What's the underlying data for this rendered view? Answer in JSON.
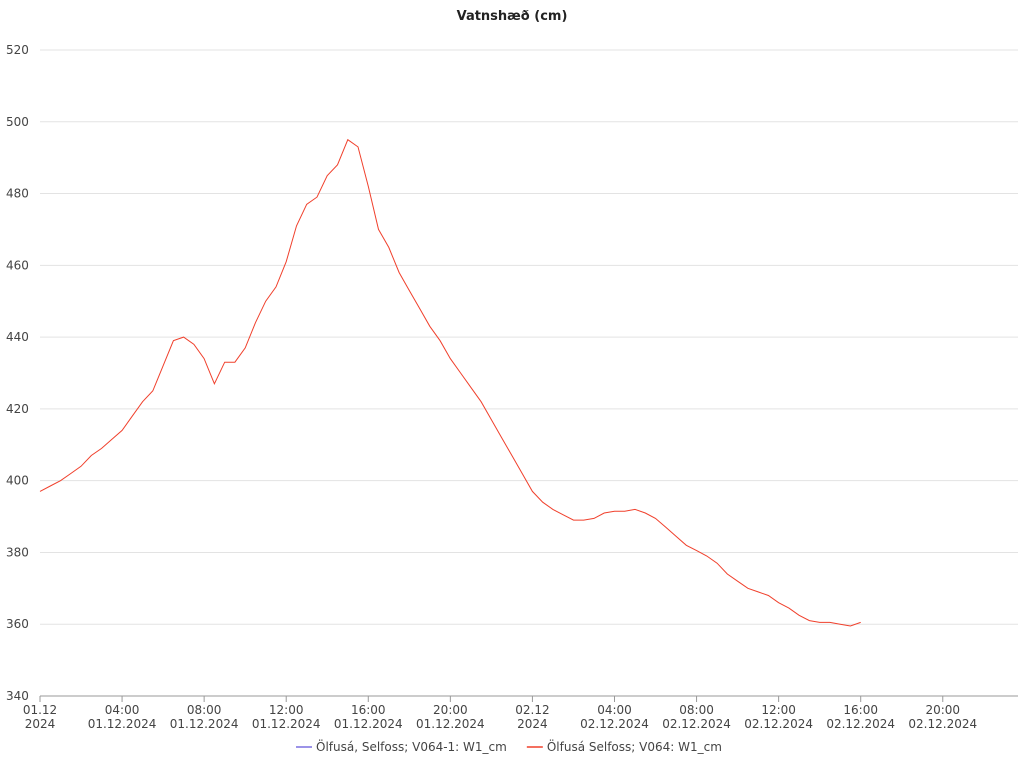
{
  "chart_data": {
    "type": "line",
    "title": "Vatnshæð (cm)",
    "x": [
      "2024-12-01T00:00",
      "2024-12-01T00:30",
      "2024-12-01T01:00",
      "2024-12-01T01:30",
      "2024-12-01T02:00",
      "2024-12-01T02:30",
      "2024-12-01T03:00",
      "2024-12-01T03:30",
      "2024-12-01T04:00",
      "2024-12-01T04:30",
      "2024-12-01T05:00",
      "2024-12-01T05:30",
      "2024-12-01T06:00",
      "2024-12-01T06:30",
      "2024-12-01T07:00",
      "2024-12-01T07:30",
      "2024-12-01T08:00",
      "2024-12-01T08:30",
      "2024-12-01T09:00",
      "2024-12-01T09:30",
      "2024-12-01T10:00",
      "2024-12-01T10:30",
      "2024-12-01T11:00",
      "2024-12-01T11:30",
      "2024-12-01T12:00",
      "2024-12-01T12:30",
      "2024-12-01T13:00",
      "2024-12-01T13:30",
      "2024-12-01T14:00",
      "2024-12-01T14:30",
      "2024-12-01T15:00",
      "2024-12-01T15:30",
      "2024-12-01T16:00",
      "2024-12-01T16:30",
      "2024-12-01T17:00",
      "2024-12-01T17:30",
      "2024-12-01T18:00",
      "2024-12-01T18:30",
      "2024-12-01T19:00",
      "2024-12-01T19:30",
      "2024-12-01T20:00",
      "2024-12-01T20:30",
      "2024-12-01T21:00",
      "2024-12-01T21:30",
      "2024-12-01T22:00",
      "2024-12-01T22:30",
      "2024-12-01T23:00",
      "2024-12-01T23:30",
      "2024-12-02T00:00",
      "2024-12-02T00:30",
      "2024-12-02T01:00",
      "2024-12-02T01:30",
      "2024-12-02T02:00",
      "2024-12-02T02:30",
      "2024-12-02T03:00",
      "2024-12-02T03:30",
      "2024-12-02T04:00",
      "2024-12-02T04:30",
      "2024-12-02T05:00",
      "2024-12-02T05:30",
      "2024-12-02T06:00",
      "2024-12-02T06:30",
      "2024-12-02T07:00",
      "2024-12-02T07:30",
      "2024-12-02T08:00",
      "2024-12-02T08:30",
      "2024-12-02T09:00",
      "2024-12-02T09:30",
      "2024-12-02T10:00",
      "2024-12-02T10:30",
      "2024-12-02T11:00",
      "2024-12-02T11:30",
      "2024-12-02T12:00",
      "2024-12-02T12:30",
      "2024-12-02T13:00",
      "2024-12-02T13:30",
      "2024-12-02T14:00",
      "2024-12-02T14:30",
      "2024-12-02T15:00",
      "2024-12-02T15:30",
      "2024-12-02T16:00"
    ],
    "series": [
      {
        "name": "Ölfusá, Selfoss; V064-1: W1_cm",
        "color": "#7b6fe0",
        "values": [
          null,
          null,
          null,
          null,
          null,
          null,
          null,
          null,
          null,
          null,
          null,
          null,
          null,
          null,
          null,
          null,
          null,
          null,
          null,
          null,
          null,
          null,
          null,
          null,
          null,
          null,
          null,
          null,
          null,
          null,
          null,
          null,
          null,
          null,
          null,
          null,
          null,
          null,
          null,
          null,
          null,
          null,
          null,
          null,
          null,
          null,
          null,
          null,
          null,
          null,
          null,
          null,
          null,
          null,
          null,
          null,
          null,
          null,
          null,
          null,
          null,
          null,
          null,
          null,
          null,
          null,
          null,
          null,
          null,
          null,
          null,
          null,
          null,
          null,
          null,
          null,
          null,
          null,
          null,
          null,
          null
        ]
      },
      {
        "name": "Ölfusá Selfoss; V064: W1_cm",
        "color": "#f0402c",
        "values": [
          397,
          398.5,
          400,
          402,
          404,
          407,
          409,
          411.5,
          414,
          418,
          422,
          425,
          432,
          439,
          440,
          438,
          434,
          427,
          433,
          433,
          437,
          444,
          450,
          454,
          461,
          471,
          477,
          479,
          485,
          488,
          495,
          493,
          482,
          470,
          465,
          458,
          453,
          448,
          443,
          439,
          434,
          430,
          426,
          422,
          417,
          412,
          407,
          402,
          397,
          394,
          392,
          390.5,
          389,
          389,
          389.5,
          391,
          391.5,
          391.5,
          392,
          391,
          389.5,
          387,
          384.5,
          382,
          380.5,
          379,
          377,
          374,
          372,
          370,
          369,
          368,
          366,
          364.5,
          362.5,
          361,
          360.5,
          360.5,
          360,
          359.5,
          360.5
        ]
      }
    ],
    "xlim": [
      "2024-12-01T00:00",
      "2024-12-02T23:40"
    ],
    "xticks": [
      {
        "value": "2024-12-01T00:00",
        "label": "01.12\n2024"
      },
      {
        "value": "2024-12-01T04:00",
        "label": "04:00\n01.12.2024"
      },
      {
        "value": "2024-12-01T08:00",
        "label": "08:00\n01.12.2024"
      },
      {
        "value": "2024-12-01T12:00",
        "label": "12:00\n01.12.2024"
      },
      {
        "value": "2024-12-01T16:00",
        "label": "16:00\n01.12.2024"
      },
      {
        "value": "2024-12-01T20:00",
        "label": "20:00\n01.12.2024"
      },
      {
        "value": "2024-12-02T00:00",
        "label": "02.12\n2024"
      },
      {
        "value": "2024-12-02T04:00",
        "label": "04:00\n02.12.2024"
      },
      {
        "value": "2024-12-02T08:00",
        "label": "08:00\n02.12.2024"
      },
      {
        "value": "2024-12-02T12:00",
        "label": "12:00\n02.12.2024"
      },
      {
        "value": "2024-12-02T16:00",
        "label": "16:00\n02.12.2024"
      },
      {
        "value": "2024-12-02T20:00",
        "label": "20:00\n02.12.2024"
      }
    ],
    "ylim": [
      340,
      520
    ],
    "yticks": [
      340,
      360,
      380,
      400,
      420,
      440,
      460,
      480,
      500,
      520
    ],
    "grid": true
  }
}
